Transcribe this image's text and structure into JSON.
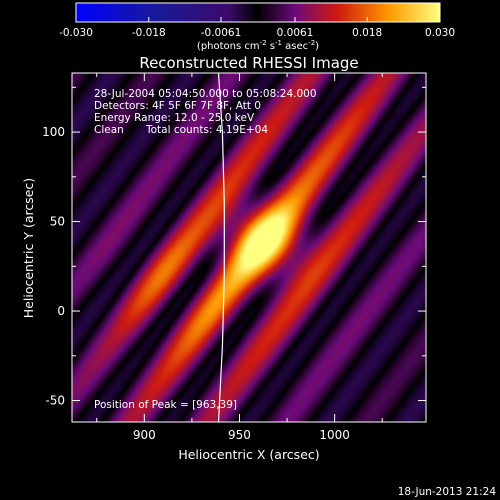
{
  "chart_data": {
    "type": "heatmap",
    "title": "Reconstructed RHESSI Image",
    "xlabel": "Heliocentric X (arcsec)",
    "ylabel": "Heliocentric Y (arcsec)",
    "xlim": [
      862,
      1048
    ],
    "ylim": [
      -62,
      133
    ],
    "x_ticks": [
      900,
      950,
      1000
    ],
    "y_ticks": [
      -50,
      0,
      50,
      100
    ],
    "colorbar": {
      "ticks": [
        "-0.030",
        "-0.018",
        "-0.0061",
        "0.0061",
        "0.018",
        "0.030"
      ],
      "range": [
        -0.03,
        0.03
      ],
      "unit_label": "(photons cm",
      "unit_sup1": "-2",
      "unit_mid": " s",
      "unit_sup2": "-1",
      "unit_mid2": " asec",
      "unit_sup3": "-2",
      "unit_end": ")"
    },
    "annotations": {
      "time": "28-Jul-2004 05:04:50.000 to 05:08:24.000",
      "detectors": "Detectors: 4F 5F 6F 7F 8F, Att 0",
      "energy": "Energy Range: 12.0 - 25.0 keV",
      "method": "Clean",
      "counts": "Total counts: 4.19E+04",
      "peak": "Position of Peak = [963,39]"
    },
    "peak": {
      "x": 963,
      "y": 39
    },
    "limb_points": [
      [
        939,
        133
      ],
      [
        941,
        100
      ],
      [
        942,
        60
      ],
      [
        942,
        20
      ],
      [
        941,
        -20
      ],
      [
        939,
        -62
      ]
    ],
    "timestamp": "18-Jun-2013 21:24"
  },
  "colors": {
    "background": "#000000",
    "axis": "#ffffff",
    "limb": "#ffffff"
  }
}
